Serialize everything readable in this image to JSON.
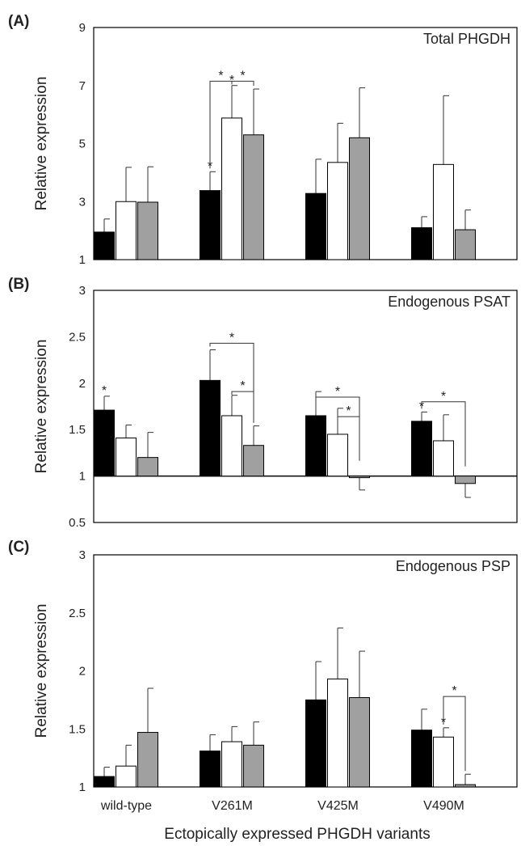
{
  "figure": {
    "xlabel": "Ectopically expressed PHGDH variants",
    "categories": [
      "wild-type",
      "V261M",
      "V425M",
      "V490M"
    ],
    "series_colors": [
      "#000000",
      "#ffffff",
      "#a0a0a0"
    ]
  },
  "chart_data": [
    {
      "type": "bar",
      "panel_label": "(A)",
      "title": "Total PHGDH",
      "ylabel": "Relative expression",
      "ylim": [
        1,
        9
      ],
      "yticks": [
        "1",
        "3",
        "5",
        "7",
        "9"
      ],
      "categories": [
        "wild-type",
        "V261M",
        "V425M",
        "V490M"
      ],
      "series": [
        {
          "values": [
            1.95,
            3.38,
            3.28,
            2.1
          ],
          "errors": [
            0.45,
            0.65,
            1.18,
            0.38
          ]
        },
        {
          "values": [
            3.0,
            5.88,
            4.35,
            4.28
          ],
          "errors": [
            1.18,
            1.12,
            1.35,
            2.37
          ]
        },
        {
          "values": [
            2.98,
            5.3,
            5.2,
            2.03
          ],
          "errors": [
            1.22,
            1.58,
            1.72,
            0.68
          ]
        }
      ],
      "asterisks": [
        {
          "category": 1,
          "series": 0,
          "text": "*"
        },
        {
          "category": 1,
          "series": 1,
          "text": "*"
        }
      ],
      "brackets": [
        {
          "category": 1,
          "from": 0,
          "to": 1,
          "level": 7.15,
          "text": "*"
        },
        {
          "category": 1,
          "from": 1,
          "to": 2,
          "level": 7.15,
          "text": "*"
        }
      ]
    },
    {
      "type": "bar",
      "panel_label": "(B)",
      "title": "Endogenous PSAT",
      "ylabel": "Relative expression",
      "ylim": [
        0.5,
        3
      ],
      "baseline": 1,
      "yticks": [
        "0.5",
        "1",
        "1.5",
        "2",
        "2.5",
        "3"
      ],
      "categories": [
        "wild-type",
        "V261M",
        "V425M",
        "V490M"
      ],
      "series": [
        {
          "values": [
            1.71,
            2.03,
            1.65,
            1.59
          ],
          "errors": [
            0.15,
            0.33,
            0.26,
            0.1
          ]
        },
        {
          "values": [
            1.41,
            1.65,
            1.45,
            1.38
          ],
          "errors": [
            0.14,
            0.22,
            0.28,
            0.28
          ]
        },
        {
          "values": [
            1.2,
            1.33,
            0.99,
            0.92
          ],
          "errors": [
            0.27,
            0.21,
            0.14,
            0.15
          ]
        }
      ],
      "asterisks": [
        {
          "category": 0,
          "series": 0,
          "text": "*"
        },
        {
          "category": 3,
          "series": 0,
          "text": "*"
        }
      ],
      "brackets": [
        {
          "category": 1,
          "from": 0,
          "to": 2,
          "level": 2.43,
          "text": "*"
        },
        {
          "category": 1,
          "from": 1,
          "to": 2,
          "level": 1.91,
          "text": "*"
        },
        {
          "category": 2,
          "from": 0,
          "to": 2,
          "level": 1.85,
          "text": "*"
        },
        {
          "category": 2,
          "from": 1,
          "to": 2,
          "level": 1.64,
          "text": "*"
        },
        {
          "category": 3,
          "from": 0,
          "to": 2,
          "level": 1.8,
          "text": "*"
        }
      ]
    },
    {
      "type": "bar",
      "panel_label": "(C)",
      "title": "Endogenous PSP",
      "ylabel": "Relative expression",
      "ylim": [
        1,
        3
      ],
      "yticks": [
        "1",
        "1.5",
        "2",
        "2.5",
        "3"
      ],
      "categories": [
        "wild-type",
        "V261M",
        "V425M",
        "V490M"
      ],
      "series": [
        {
          "values": [
            1.09,
            1.31,
            1.75,
            1.49
          ],
          "errors": [
            0.08,
            0.14,
            0.33,
            0.18
          ]
        },
        {
          "values": [
            1.18,
            1.39,
            1.93,
            1.43
          ],
          "errors": [
            0.18,
            0.13,
            0.44,
            0.08
          ]
        },
        {
          "values": [
            1.47,
            1.36,
            1.77,
            1.02
          ],
          "errors": [
            0.38,
            0.2,
            0.4,
            0.09
          ]
        }
      ],
      "asterisks": [
        {
          "category": 3,
          "series": 1,
          "text": "*"
        }
      ],
      "brackets": [
        {
          "category": 3,
          "from": 1,
          "to": 2,
          "level": 1.78,
          "text": "*"
        }
      ]
    }
  ]
}
